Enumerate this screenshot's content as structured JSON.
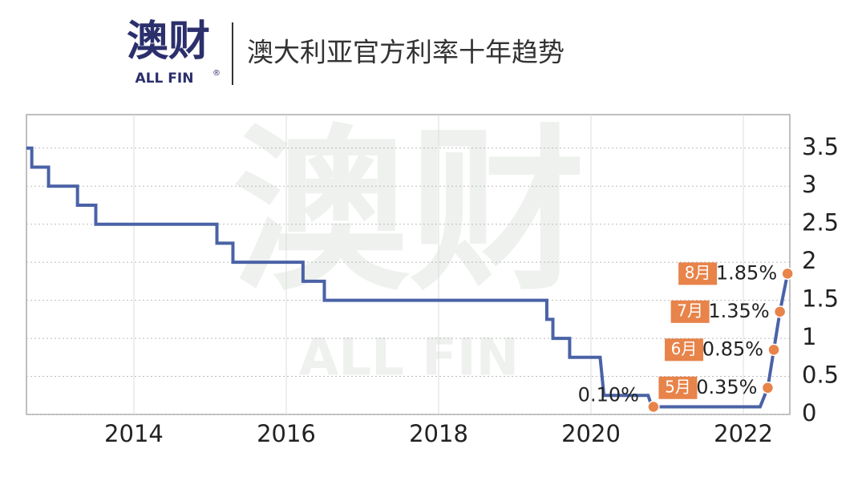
{
  "header": {
    "logo": "澳财",
    "brand": "ALL FIN",
    "mark": "®"
  },
  "chart_data": {
    "type": "line",
    "title": "澳大利亚官方利率十年趋势",
    "x": [
      2012.59,
      2012.66,
      2012.66,
      2012.88,
      2012.88,
      2013.26,
      2013.26,
      2013.5,
      2013.5,
      2015.09,
      2015.09,
      2015.3,
      2015.3,
      2016.22,
      2016.22,
      2016.5,
      2016.5,
      2019.42,
      2019.42,
      2019.5,
      2019.5,
      2019.72,
      2019.72,
      2020.12,
      2020.17,
      2020.75,
      2020.8,
      2022.22,
      2022.32,
      2022.4,
      2022.48,
      2022.58
    ],
    "values": [
      3.5,
      3.5,
      3.25,
      3.25,
      3.0,
      3.0,
      2.75,
      2.75,
      2.5,
      2.5,
      2.25,
      2.25,
      2.0,
      2.0,
      1.75,
      1.75,
      1.5,
      1.5,
      1.25,
      1.25,
      1.0,
      1.0,
      0.75,
      0.75,
      0.25,
      0.25,
      0.1,
      0.1,
      0.35,
      0.85,
      1.35,
      1.85
    ],
    "color": "#4a62a6",
    "annotations": [
      {
        "x": 2020.82,
        "y": 0.1,
        "label": "0.10%"
      },
      {
        "x": 2022.32,
        "y": 0.35,
        "tag": "5月",
        "label": "0.35%"
      },
      {
        "x": 2022.4,
        "y": 0.85,
        "tag": "6月",
        "label": "0.85%"
      },
      {
        "x": 2022.48,
        "y": 1.35,
        "tag": "7月",
        "label": "1.35%"
      },
      {
        "x": 2022.58,
        "y": 1.85,
        "tag": "8月",
        "label": "1.85%"
      }
    ],
    "annotation_color": "#e8834a",
    "xlim": [
      2012.59,
      2022.61
    ],
    "xticks": [
      2014,
      2016,
      2018,
      2020,
      2022
    ],
    "ylim": [
      0,
      3.94
    ],
    "yticks": [
      0,
      0.5,
      1,
      1.5,
      2,
      2.5,
      3,
      3.5
    ],
    "grid": true
  }
}
